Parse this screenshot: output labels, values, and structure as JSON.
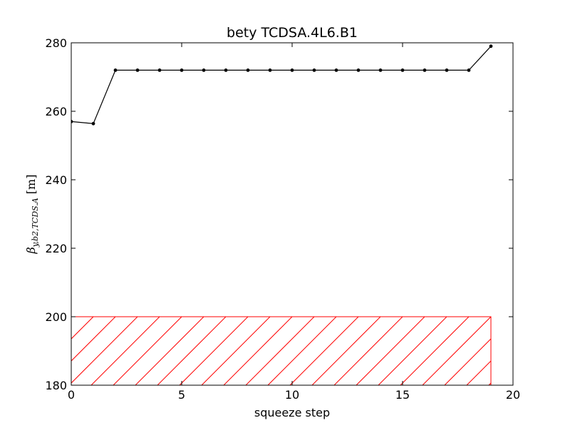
{
  "chart_data": {
    "type": "line",
    "title": "bety TCDSA.4L6.B1",
    "xlabel": "squeeze step",
    "ylabel": "βy,b2,TCDS.A [m]",
    "xlim": [
      0,
      20
    ],
    "ylim": [
      180,
      280
    ],
    "xticks": [
      0,
      5,
      10,
      15,
      20
    ],
    "yticks": [
      180,
      200,
      220,
      240,
      260,
      280
    ],
    "grid": false,
    "series": [
      {
        "x": [
          0,
          1,
          2,
          3,
          4,
          5,
          6,
          7,
          8,
          9,
          10,
          11,
          12,
          13,
          14,
          15,
          16,
          17,
          18,
          19
        ],
        "values": [
          257,
          256.4,
          272,
          272,
          272,
          272,
          272,
          272,
          272,
          272,
          272,
          272,
          272,
          272,
          272,
          272,
          272,
          272,
          272,
          279
        ],
        "color": "#000000",
        "marker": "dot"
      }
    ],
    "hatched_region": {
      "x": [
        0,
        19
      ],
      "y": [
        180,
        200
      ],
      "color": "#ff0000"
    }
  }
}
